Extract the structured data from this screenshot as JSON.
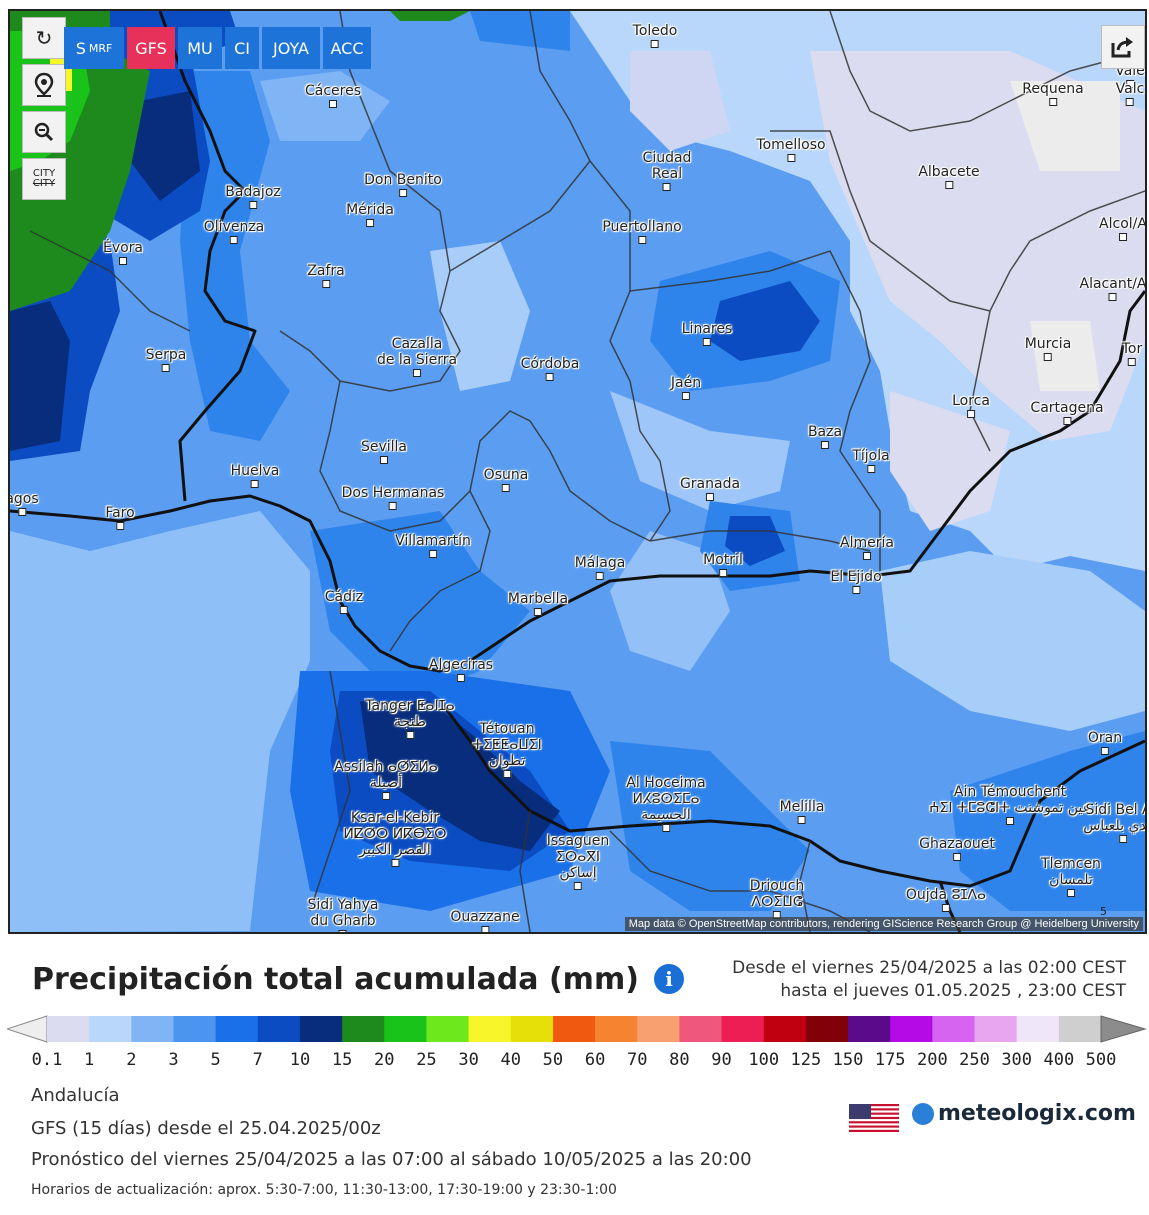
{
  "toolbar": {
    "refresh_icon": "refresh-icon",
    "location_icon": "map-pin-icon",
    "zoom_icon": "zoom-icon",
    "city_label_top": "CITY",
    "city_label_bottom": "CITY",
    "models": [
      {
        "label": "S",
        "sub": "MRF",
        "active": false
      },
      {
        "label": "GFS",
        "sub": "",
        "active": true
      },
      {
        "label": "MU",
        "sub": "",
        "active": false
      },
      {
        "label": "CI",
        "sub": "",
        "active": false
      },
      {
        "label": "JOYA",
        "sub": "",
        "active": false
      },
      {
        "label": "ACC",
        "sub": "",
        "active": false
      }
    ],
    "share_icon": "share-icon"
  },
  "map": {
    "attribution": "Map data © OpenStreetMap contributors, rendering GIScience Research Group @ Heidelberg University",
    "scale_mark": "5",
    "cities": [
      {
        "name": "Toledo"
      },
      {
        "name": "Cáceres"
      },
      {
        "name": "Requena"
      },
      {
        "name": "Vale"
      },
      {
        "name": "Valc"
      },
      {
        "name": "Ciudad\nReal"
      },
      {
        "name": "Tomelloso"
      },
      {
        "name": "Albacete"
      },
      {
        "name": "Badajoz"
      },
      {
        "name": "Don Benito"
      },
      {
        "name": "Mérida"
      },
      {
        "name": "Olivenza"
      },
      {
        "name": "Puertollano"
      },
      {
        "name": "Alcol/A"
      },
      {
        "name": "Évora"
      },
      {
        "name": "Zafra"
      },
      {
        "name": "Alacant/A"
      },
      {
        "name": "Linares"
      },
      {
        "name": "Cazalla\nde la Sierra"
      },
      {
        "name": "Murcia"
      },
      {
        "name": "Serpa"
      },
      {
        "name": "Córdoba"
      },
      {
        "name": "Tor"
      },
      {
        "name": "Jaén"
      },
      {
        "name": "Lorca"
      },
      {
        "name": "Cartagena"
      },
      {
        "name": "Baza"
      },
      {
        "name": "Sevilla"
      },
      {
        "name": "Tíjola"
      },
      {
        "name": "Huelva"
      },
      {
        "name": "Osuna"
      },
      {
        "name": "Granada"
      },
      {
        "name": "Dos Hermanas"
      },
      {
        "name": "agos"
      },
      {
        "name": "Faro"
      },
      {
        "name": "Villamartín"
      },
      {
        "name": "Almería"
      },
      {
        "name": "Málaga"
      },
      {
        "name": "Motril"
      },
      {
        "name": "El Ejido"
      },
      {
        "name": "Cádiz"
      },
      {
        "name": "Marbella"
      },
      {
        "name": "Algeciras"
      },
      {
        "name": "Tanger ⵟⴰⵏⵊⴰ\nطنجة"
      },
      {
        "name": "Tétouan\nⵜⵉⵟⵟⴰⵡⵉⵏ\nتطوان"
      },
      {
        "name": "Oran"
      },
      {
        "name": "Assilah ⴰⵚⵉⵍⴰ\nأصيلة"
      },
      {
        "name": "Al Hoceima\nⵍⵃⵓⵙⵉⵎⴰ\nالحسيمة"
      },
      {
        "name": "Ain Témouchent\nⵄⵉⵏ ⵜⵎⵓⵛⵏⵜ عين تموشنت"
      },
      {
        "name": "Melilla"
      },
      {
        "name": "Sidi Bel Ab\nسيدي بلعباس"
      },
      {
        "name": "Ksar-el-Kebir\nⵍⵇⵚⵔ ⵍⴽⴱⵉⵔ\nالقصر الكبير"
      },
      {
        "name": "Issaguen\nⵉⵙⴰⴳⵏ\nإساكن"
      },
      {
        "name": "Ghazaouet"
      },
      {
        "name": "Tlemcen\nتلمسان"
      },
      {
        "name": "Driouch\nⴷⵔⵉⵡⵛ"
      },
      {
        "name": "Ouazzane"
      },
      {
        "name": "Sidi Yahya\ndu Gharb"
      },
      {
        "name": "Oujda ⵓⵊⴷⴰ"
      }
    ]
  },
  "legend": {
    "title": "Precipitación total acumulada (mm)",
    "info_icon": "info-icon",
    "period_from": "Desde el viernes 25/04/2025 a  las 02:00  CEST",
    "period_to": "hasta el jueves 01.05.2025 ,  23:00  CEST",
    "ticks": [
      "0.1",
      "1",
      "2",
      "3",
      "5",
      "7",
      "10",
      "15",
      "20",
      "25",
      "30",
      "40",
      "50",
      "60",
      "70",
      "80",
      "90",
      "100",
      "125",
      "150",
      "175",
      "200",
      "250",
      "300",
      "400",
      "500"
    ],
    "colors": [
      "#dcdcf0",
      "#b9d7fb",
      "#7fb5f5",
      "#4b95f0",
      "#1a70e8",
      "#0b4cc2",
      "#072d7c",
      "#1e8a1e",
      "#19c319",
      "#6ce81c",
      "#f8f52a",
      "#e6df08",
      "#f05a10",
      "#f68330",
      "#f8a070",
      "#f0577c",
      "#ec1e54",
      "#c00010",
      "#820008",
      "#5c0a8c",
      "#b40ae6",
      "#d764f0",
      "#e8a6f0",
      "#f0e6fa",
      "#cfcfcf"
    ]
  },
  "meta": {
    "region": "Andalucía",
    "model_run": "GFS  (15 días)  desde el 25.04.2025/00z",
    "forecast": "Pronóstico del viernes 25/04/2025 a las 07:00 al sábado 10/05/2025 a las 20:00",
    "update_times": "Horarios de actualización: aprox. 5:30-7:00, 11:30-13:00, 17:30-19:00 y 23:30-1:00"
  },
  "brand": {
    "name": "meteologix.com",
    "flag_icon": "usa-flag-icon",
    "logo_icon": "meteologix-logo-icon"
  }
}
